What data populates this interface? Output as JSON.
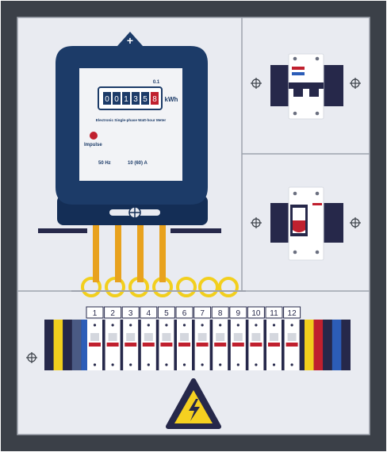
{
  "colors": {
    "cabinet_border": "#3b4048",
    "panel_fill": "#e9ebf1",
    "divider": "#9ea3ad",
    "meter_navy": "#1c3b68",
    "meter_dark": "#142e56",
    "dark_navy": "#26284a",
    "rail": "#1f2a44",
    "wire_orange": "#e8a21e",
    "wire_yellow": "#f2cf1d",
    "accent_red": "#c0202e",
    "accent_blue": "#2c5db8",
    "warning_yellow": "#f5d020"
  },
  "meter": {
    "multiplier": "0.1",
    "digits": [
      "0",
      "0",
      "1",
      "3",
      "5"
    ],
    "decimal_digit": "8",
    "unit": "kWh",
    "description": "Electronic Single-phase Watt-hour Meter",
    "impulse_label": "Impulse",
    "frequency": "50 Hz",
    "current_rating": "10 (60) A",
    "top_screw_glyph": "+"
  },
  "breaker_panel": {
    "numbers": [
      "1",
      "2",
      "3",
      "4",
      "5",
      "6",
      "7",
      "8",
      "9",
      "10",
      "11",
      "12"
    ],
    "left_terminal_colors": [
      "#26284a",
      "#f2cf1d",
      "#26284a",
      "#4a5a84",
      "#2c5db8"
    ],
    "right_terminal_colors": [
      "#f2cf1d",
      "#c0202e",
      "#26284a",
      "#2c5db8",
      "#26284a"
    ]
  },
  "warning_icon": "high-voltage-warning-icon",
  "screw_icon": "crosshair-screw-icon"
}
